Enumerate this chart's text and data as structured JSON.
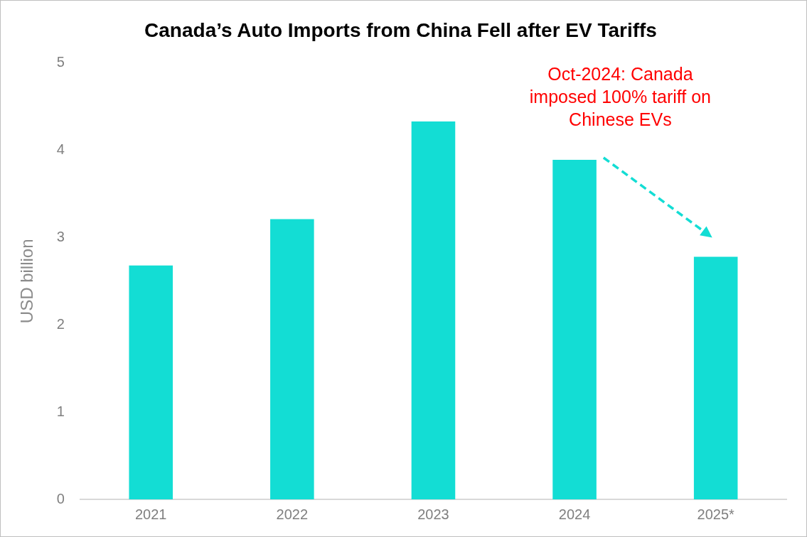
{
  "chart_data": {
    "type": "bar",
    "title": "Canada’s Auto Imports from China Fell after EV Tariffs",
    "ylabel": "USD billion",
    "categories": [
      "2021",
      "2022",
      "2023",
      "2024",
      "2025*"
    ],
    "values": [
      2.68,
      3.21,
      4.33,
      3.89,
      2.78
    ],
    "color": "#13ddd4",
    "ylim": [
      0,
      5
    ],
    "yticks": [
      0,
      1,
      2,
      3,
      4,
      5
    ],
    "grid": false,
    "legend": false,
    "annotations": [
      "Oct-2024: Canada imposed 100% tariff on Chinese EVs"
    ]
  }
}
